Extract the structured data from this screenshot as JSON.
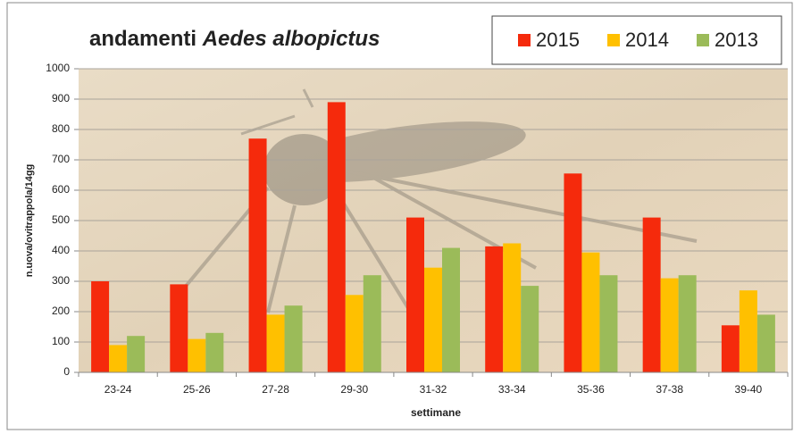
{
  "chart_data": {
    "type": "bar",
    "title": {
      "text": "andamenti",
      "species": "Aedes albopictus"
    },
    "x_label": "settimane",
    "y_label": "n.uova/ovitrappola/14gg",
    "categories": [
      "23-24",
      "25-26",
      "27-28",
      "29-30",
      "31-32",
      "33-34",
      "35-36",
      "37-38",
      "39-40"
    ],
    "series": [
      {
        "name": "2015",
        "color": "#f52a0c",
        "values": [
          300,
          290,
          770,
          890,
          510,
          415,
          655,
          510,
          155
        ]
      },
      {
        "name": "2014",
        "color": "#ffc000",
        "values": [
          90,
          110,
          190,
          255,
          345,
          425,
          395,
          310,
          270
        ]
      },
      {
        "name": "2013",
        "color": "#9bbb59",
        "values": [
          120,
          130,
          220,
          320,
          410,
          285,
          320,
          320,
          190
        ]
      }
    ],
    "ylim": [
      0,
      1000
    ],
    "yticks": [
      0,
      100,
      200,
      300,
      400,
      500,
      600,
      700,
      800,
      900,
      1000
    ],
    "grid": true,
    "legend": "top-right"
  }
}
